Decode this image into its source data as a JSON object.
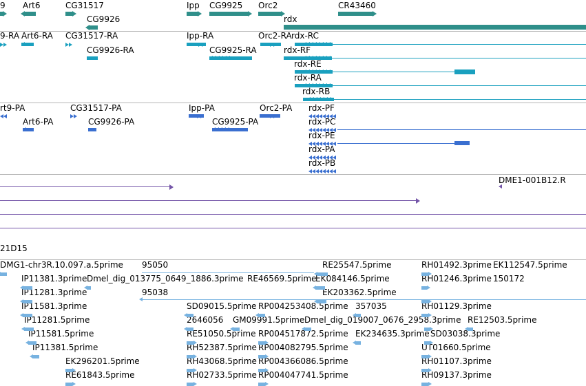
{
  "colors": {
    "gene": "#2f8f8a",
    "transcript": "#1aa0bf",
    "protein": "#3a6fd0",
    "alignment": "#7455a8",
    "est": "#77b2e0",
    "separator": "#b4b4b4"
  },
  "icons": {
    "forward_arrow": "triangle-right",
    "reverse_arrow": "triangle-left",
    "strand_chevron": "chevron"
  },
  "tracks": {
    "genes": {
      "labels": [
        "9",
        "Art6",
        "CG31517",
        "Ipp",
        "CG9925",
        "Orc2",
        "CR43460",
        "CG9926",
        "rdx"
      ]
    },
    "transcripts": {
      "labels": [
        "9-RA",
        "Art6-RA",
        "CG31517-RA",
        "Ipp-RA",
        "Orc2-RA",
        "rdx-RC",
        "CG9926-RA",
        "CG9925-RA",
        "rdx-RF",
        "rdx-RE",
        "rdx-RA",
        "rdx-RB"
      ]
    },
    "proteins": {
      "labels": [
        "rt9-PA",
        "CG31517-PA",
        "Ipp-PA",
        "Orc2-PA",
        "rdx-PF",
        "Art6-PA",
        "CG9926-PA",
        "CG9925-PA",
        "rdx-PC",
        "rdx-PE",
        "rdx-PA",
        "rdx-PB"
      ]
    },
    "alignments": {
      "labels": [
        "DME1-001B12.R"
      ]
    },
    "clone": {
      "labels": [
        "21D15"
      ]
    },
    "ests": {
      "labels": [
        "DMG1-chr3R.10.097.a.5prime",
        "95050",
        "RE25547.5prime",
        "RH01492.3prime",
        "EK112547.5prime",
        "IP11381.3prime",
        "Dmel_dig_013775_0649_1886.3prime",
        "RE46569.5prime",
        "EK084146.5prime",
        "RH01246.3prime",
        "150172",
        "IP11281.3prime",
        "95038",
        "EK203362.5prime",
        "IP11581.3prime",
        "SD09015.5prime",
        "RP004253408.5prime",
        "357035",
        "RH01129.3prime",
        "IP11281.5prime",
        "2646056",
        "GM09991.5prime",
        "Dmel_dig_019007_0676_2958.3prime",
        "RE12503.5prime",
        "IP11581.5prime",
        "RE51050.5prime",
        "RP004517872.5prime",
        "EK234635.3prime",
        "SD03038.3prime",
        "IP11381.5prime",
        "RH52387.5prime",
        "RP004082795.5prime",
        "UT01660.5prime",
        "EK296201.5prime",
        "RH43068.5prime",
        "RP004366086.5prime",
        "RH01107.3prime",
        "RE61843.5prime",
        "RH02733.5prime",
        "RP004047741.5prime",
        "RH09137.3prime"
      ]
    }
  }
}
